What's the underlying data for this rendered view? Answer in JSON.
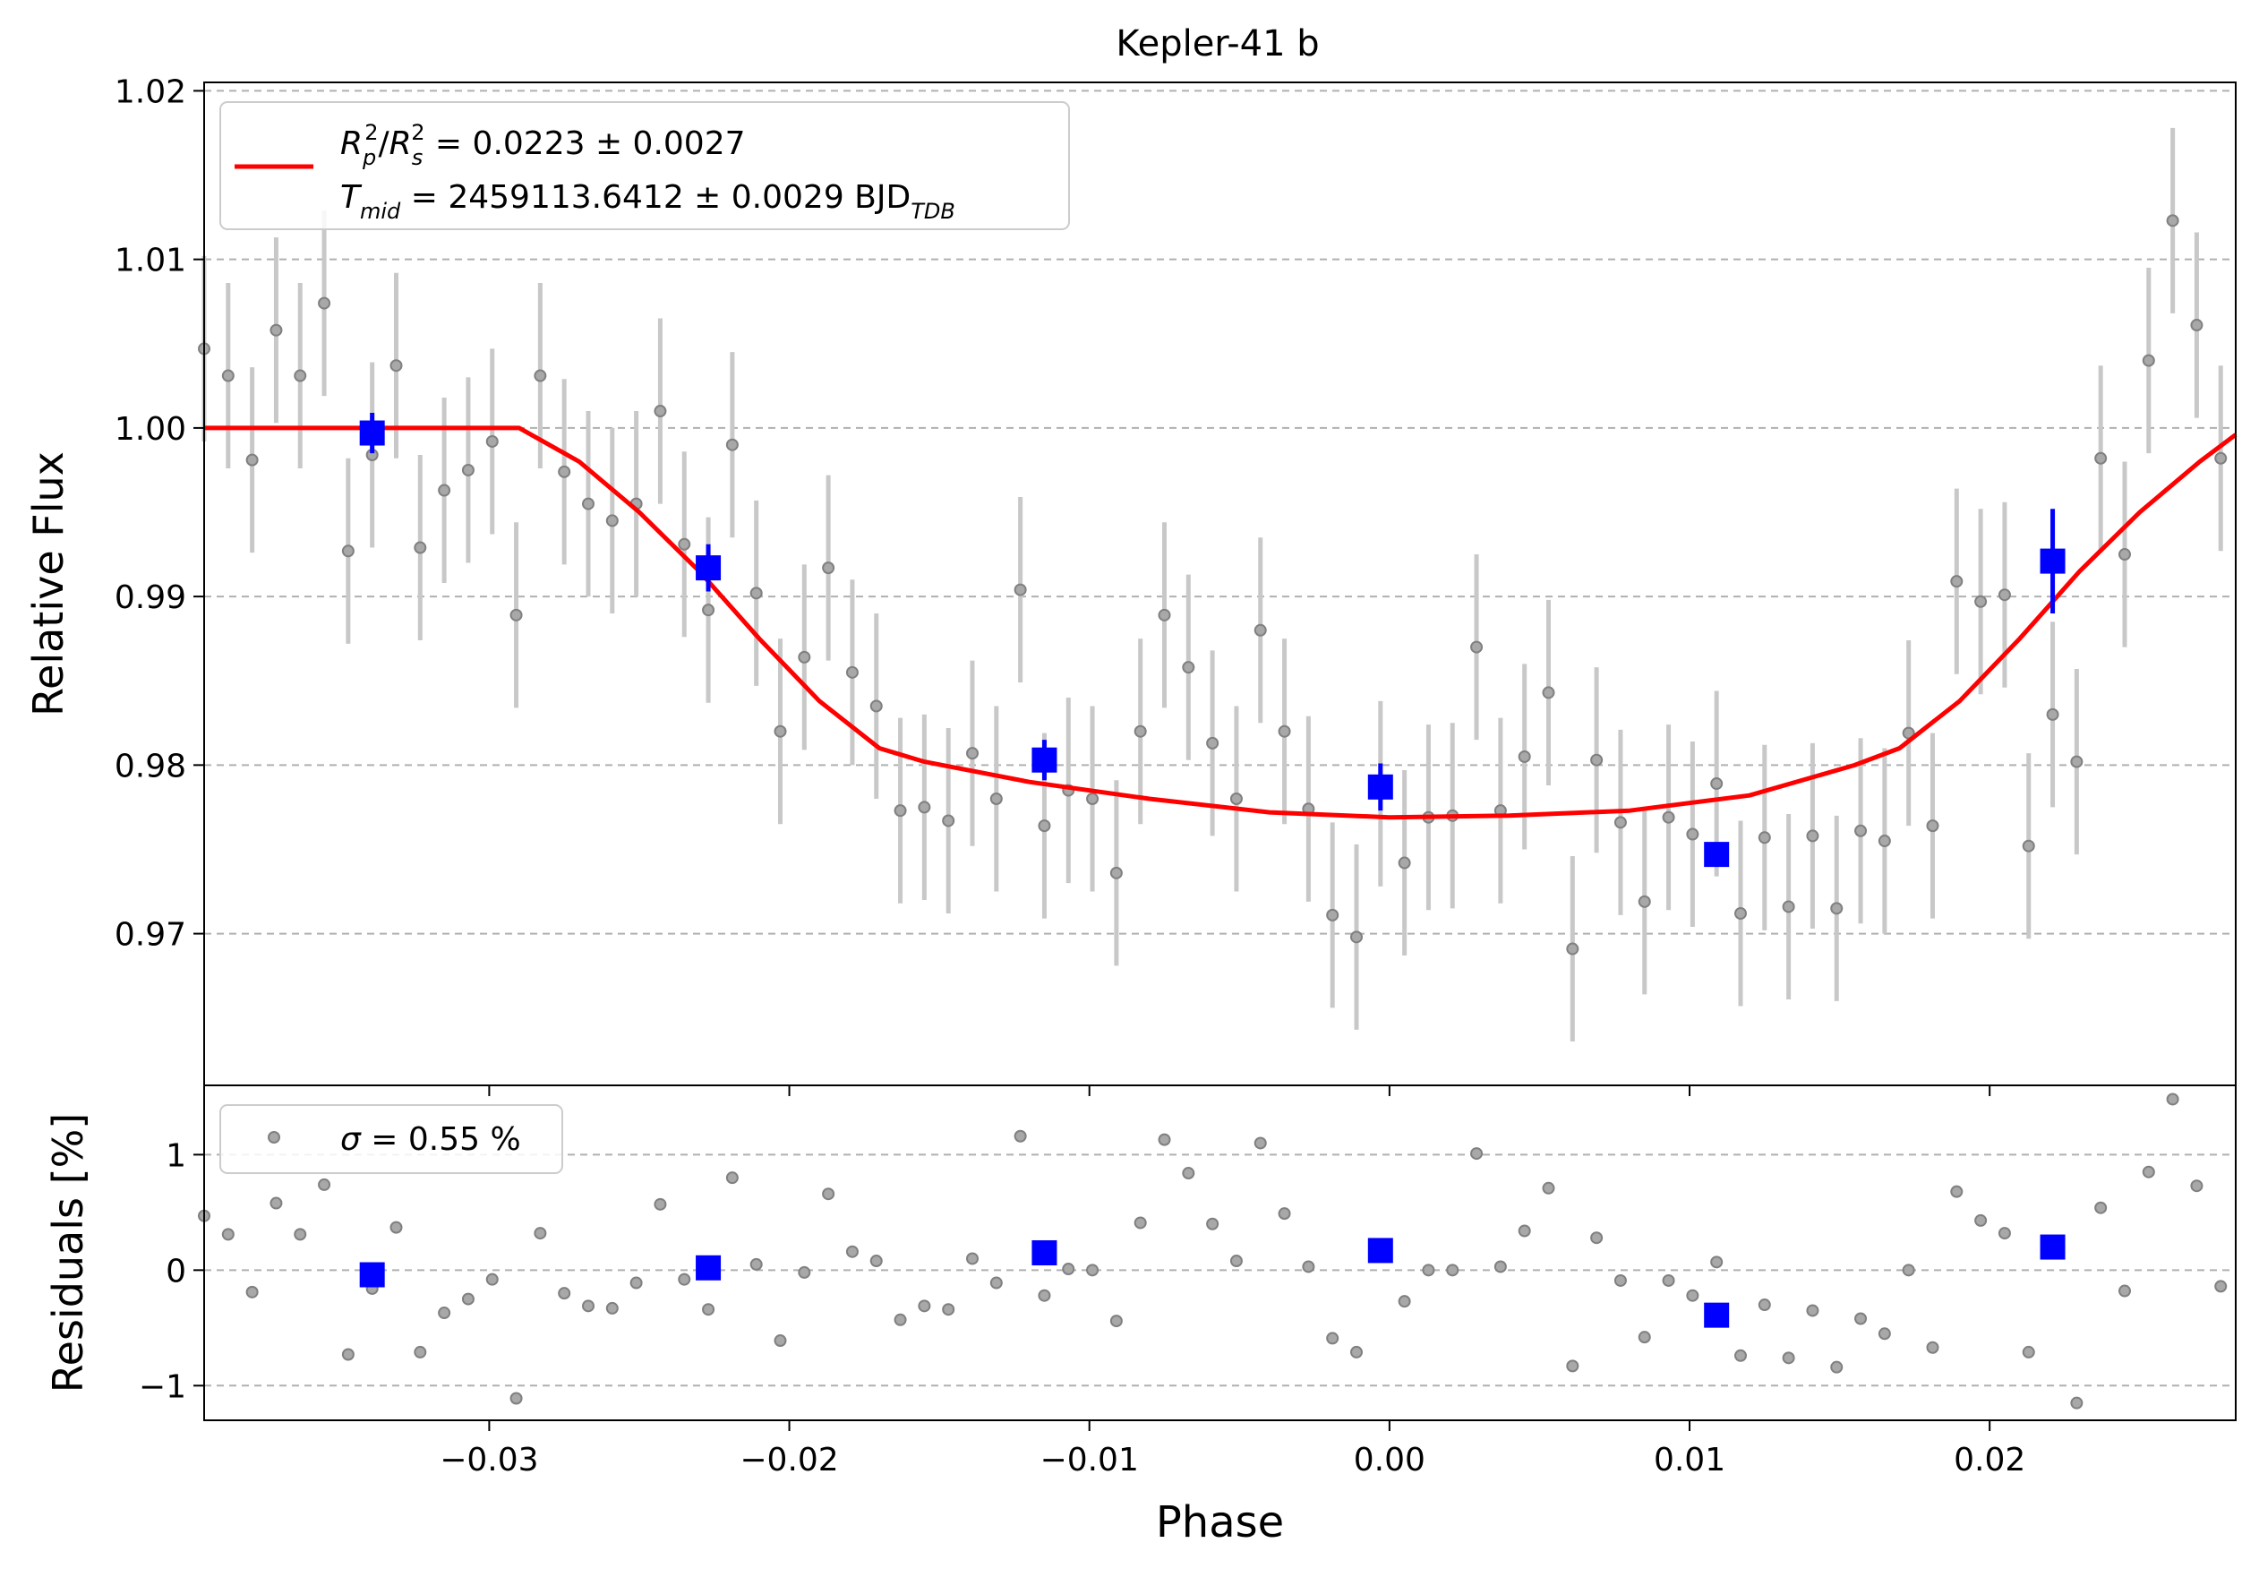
{
  "chart_data": [
    {
      "type": "scatter",
      "panel": "transit",
      "title": "Kepler-41 b",
      "xlabel": "",
      "ylabel": "Relative Flux",
      "xlim": [
        -0.0395,
        0.0282
      ],
      "ylim": [
        0.961,
        1.0205
      ],
      "grid": "horizontal dashed",
      "legend_position": "top-left",
      "yticks": [
        "0.97",
        "0.98",
        "0.99",
        "1.00",
        "1.01",
        "1.02"
      ],
      "ytick_values": [
        0.97,
        0.98,
        0.99,
        1.0,
        1.01,
        1.02
      ],
      "legend": {
        "line1": {
          "r1": "R",
          "r1_sub": "p",
          "r1_sup": "2",
          "slash": "/",
          "r2": "R",
          "r2_sub": "s",
          "r2_sup": "2",
          "rest": " = 0.0223 ± 0.0027"
        },
        "line2": {
          "t": "T",
          "t_sub": "mid",
          "rest": " = 2459113.6412 ± 0.0029 BJD",
          "bjd_sub": "TDB"
        }
      },
      "colors": {
        "model": "#ff0000",
        "binned": "#0000ff",
        "data": "#808080",
        "errorbar": "#c8c8c8",
        "grid": "#b0b0b0"
      },
      "series": [
        {
          "kind": "data",
          "x": [
            -0.0395,
            -0.0387,
            -0.0379,
            -0.0371,
            -0.0363,
            -0.0355,
            -0.0347,
            -0.0339,
            -0.0331,
            -0.0323,
            -0.0315,
            -0.0307,
            -0.0299,
            -0.0291,
            -0.0283,
            -0.0275,
            -0.0267,
            -0.0259,
            -0.0251,
            -0.0243,
            -0.0235,
            -0.0227,
            -0.0219,
            -0.0211,
            -0.0203,
            -0.0195,
            -0.0187,
            -0.0179,
            -0.0171,
            -0.0163,
            -0.0155,
            -0.0147,
            -0.0139,
            -0.0131,
            -0.0123,
            -0.0115,
            -0.0107,
            -0.0099,
            -0.0091,
            -0.0083,
            -0.0075,
            -0.0067,
            -0.0059,
            -0.0051,
            -0.0043,
            -0.0035,
            -0.0027,
            -0.0019,
            -0.0011,
            -0.0003,
            0.0005,
            0.0013,
            0.0021,
            0.0029,
            0.0037,
            0.0045,
            0.0053,
            0.0061,
            0.0069,
            0.0077,
            0.0085,
            0.0093,
            0.0101,
            0.0109,
            0.0117,
            0.0125,
            0.0133,
            0.0141,
            0.0149,
            0.0157,
            0.0165,
            0.0173,
            0.0181,
            0.0189,
            0.0197,
            0.0205,
            0.0213,
            0.0221,
            0.0229,
            0.0237,
            0.0245,
            0.0253,
            0.0261,
            0.0269,
            0.0277
          ],
          "y": [
            1.0047,
            1.0031,
            0.9981,
            1.0058,
            1.0031,
            1.0074,
            0.9927,
            0.9984,
            1.0037,
            0.9929,
            0.9963,
            0.9975,
            0.9992,
            0.9889,
            1.0031,
            0.9974,
            0.9955,
            0.9945,
            0.9955,
            1.001,
            0.9931,
            0.9892,
            0.999,
            0.9902,
            0.982,
            0.9864,
            0.9917,
            0.9855,
            0.9835,
            0.9773,
            0.9775,
            0.9767,
            0.9807,
            0.978,
            0.9904,
            0.9764,
            0.9785,
            0.978,
            0.9736,
            0.982,
            0.9889,
            0.9858,
            0.9813,
            0.978,
            0.988,
            0.982,
            0.9774,
            0.9711,
            0.9698,
            0.9783,
            0.9742,
            0.9769,
            0.977,
            0.987,
            0.9773,
            0.9805,
            0.9843,
            0.9691,
            0.9803,
            0.9766,
            0.9719,
            0.9769,
            0.9759,
            0.9789,
            0.9712,
            0.9757,
            0.9716,
            0.9758,
            0.9715,
            0.9761,
            0.9755,
            0.9819,
            0.9764,
            0.9909,
            0.9897,
            0.9901,
            0.9752,
            0.983,
            0.9802,
            0.9982,
            0.9925,
            1.004,
            1.0123,
            1.0061,
            0.9982
          ],
          "yerr": 0.0055
        },
        {
          "kind": "binned",
          "x": [
            -0.0339,
            -0.0227,
            -0.0115,
            -0.0003,
            0.0109,
            0.0221
          ],
          "y": [
            0.9997,
            0.9917,
            0.9803,
            0.9787,
            0.9747,
            0.9921
          ],
          "yerr": [
            0.0012,
            0.0014,
            0.0012,
            0.0014,
            0.0006,
            0.0031
          ]
        },
        {
          "kind": "model",
          "x": [
            -0.0395,
            -0.029,
            -0.027,
            -0.025,
            -0.023,
            -0.021,
            -0.019,
            -0.017,
            -0.0155,
            -0.012,
            -0.008,
            -0.004,
            0.0,
            0.004,
            0.008,
            0.012,
            0.0155,
            0.017,
            0.019,
            0.021,
            0.023,
            0.025,
            0.027,
            0.0282
          ],
          "y": [
            1.0,
            1.0,
            0.998,
            0.995,
            0.9915,
            0.9875,
            0.9838,
            0.981,
            0.9802,
            0.979,
            0.978,
            0.9772,
            0.9769,
            0.977,
            0.9773,
            0.9782,
            0.98,
            0.981,
            0.9838,
            0.9875,
            0.9915,
            0.995,
            0.998,
            0.9996
          ]
        }
      ]
    },
    {
      "type": "scatter",
      "panel": "residuals",
      "xlabel": "Phase",
      "ylabel": "Residuals [%]",
      "xlim": [
        -0.0395,
        0.0282
      ],
      "ylim": [
        -1.3,
        1.6
      ],
      "grid": "horizontal dashed",
      "legend_position": "top-left",
      "xticks": [
        "−0.03",
        "−0.02",
        "−0.01",
        "0.00",
        "0.01",
        "0.02"
      ],
      "xtick_values": [
        -0.03,
        -0.02,
        -0.01,
        0.0,
        0.01,
        0.02
      ],
      "yticks": [
        "−1",
        "0",
        "1"
      ],
      "ytick_values": [
        -1,
        0,
        1
      ],
      "legend": {
        "sigma": "σ",
        "rest": " = 0.55 %"
      },
      "series": [
        {
          "kind": "data",
          "x": [
            -0.0395,
            -0.0387,
            -0.0379,
            -0.0371,
            -0.0363,
            -0.0355,
            -0.0347,
            -0.0339,
            -0.0331,
            -0.0323,
            -0.0315,
            -0.0307,
            -0.0299,
            -0.0291,
            -0.0283,
            -0.0275,
            -0.0267,
            -0.0259,
            -0.0251,
            -0.0243,
            -0.0235,
            -0.0227,
            -0.0219,
            -0.0211,
            -0.0203,
            -0.0195,
            -0.0187,
            -0.0179,
            -0.0171,
            -0.0163,
            -0.0155,
            -0.0147,
            -0.0139,
            -0.0131,
            -0.0123,
            -0.0115,
            -0.0107,
            -0.0099,
            -0.0091,
            -0.0083,
            -0.0075,
            -0.0067,
            -0.0059,
            -0.0051,
            -0.0043,
            -0.0035,
            -0.0027,
            -0.0019,
            -0.0011,
            -0.0003,
            0.0005,
            0.0013,
            0.0021,
            0.0029,
            0.0037,
            0.0045,
            0.0053,
            0.0061,
            0.0069,
            0.0077,
            0.0085,
            0.0093,
            0.0101,
            0.0109,
            0.0117,
            0.0125,
            0.0133,
            0.0141,
            0.0149,
            0.0157,
            0.0165,
            0.0173,
            0.0181,
            0.0189,
            0.0197,
            0.0205,
            0.0213,
            0.0221,
            0.0229,
            0.0237,
            0.0245,
            0.0253,
            0.0261,
            0.0269,
            0.0277
          ],
          "y": [
            0.47,
            0.31,
            -0.19,
            0.58,
            0.31,
            0.74,
            -0.73,
            -0.16,
            0.37,
            -0.71,
            -0.37,
            -0.25,
            -0.08,
            -1.11,
            0.32,
            -0.2,
            -0.31,
            -0.33,
            -0.11,
            0.57,
            -0.08,
            -0.34,
            0.8,
            0.05,
            -0.61,
            -0.02,
            0.66,
            0.16,
            0.08,
            -0.43,
            -0.31,
            -0.34,
            0.1,
            -0.11,
            1.16,
            -0.22,
            0.01,
            0.0,
            -0.44,
            0.41,
            1.13,
            0.84,
            0.4,
            0.08,
            1.1,
            0.49,
            0.03,
            -0.59,
            -0.71,
            0.15,
            -0.27,
            0.0,
            0.0,
            1.01,
            0.03,
            0.34,
            0.71,
            -0.83,
            0.28,
            -0.09,
            -0.58,
            -0.09,
            -0.22,
            0.07,
            -0.74,
            -0.3,
            -0.76,
            -0.35,
            -0.84,
            -0.42,
            -0.55,
            0.0,
            -0.67,
            0.68,
            0.43,
            0.32,
            -0.71,
            0.15,
            -1.15,
            0.54,
            -0.18,
            0.85,
            1.48,
            0.73,
            -0.14
          ]
        },
        {
          "kind": "binned",
          "x": [
            -0.0339,
            -0.0227,
            -0.0115,
            -0.0003,
            0.0109,
            0.0221
          ],
          "y": [
            -0.04,
            0.02,
            0.15,
            0.17,
            -0.39,
            0.2
          ]
        }
      ]
    }
  ]
}
